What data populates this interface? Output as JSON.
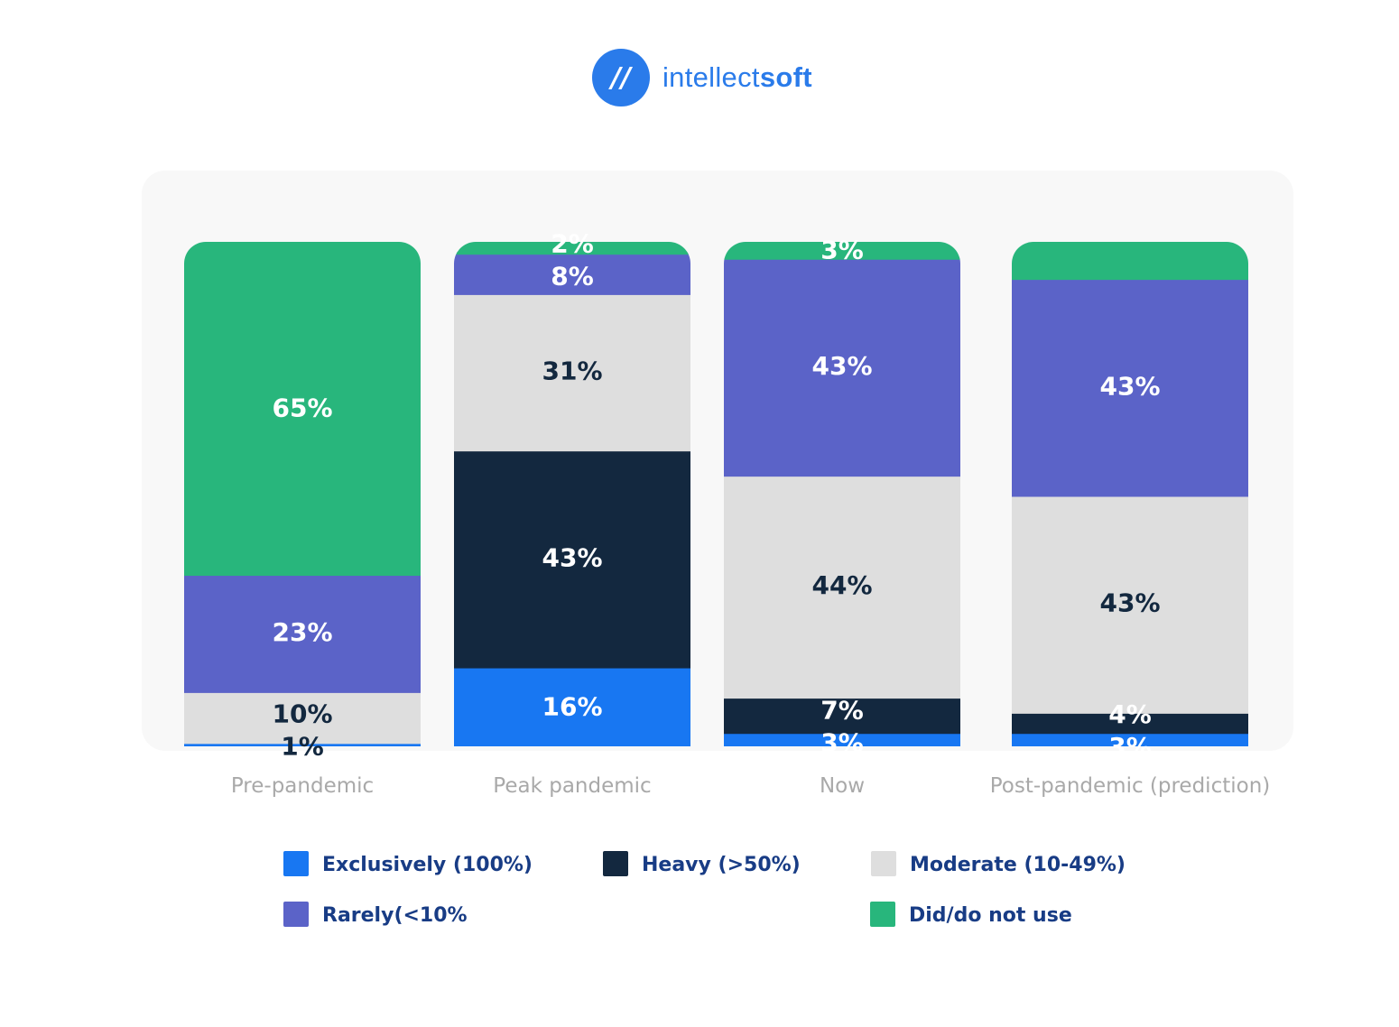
{
  "logo": {
    "text_light": "intellect",
    "text_bold": "soft",
    "mark": "//"
  },
  "colors": {
    "exclusively": "#1877f2",
    "heavy": "#13283f",
    "moderate": "#dedede",
    "rarely": "#5b63c8",
    "not_use": "#28b67c",
    "panel": "#f8f8f8",
    "legend_text": "#183c85",
    "axis_text": "#a9a9a9"
  },
  "chart_data": {
    "type": "bar",
    "stacked": true,
    "categories": [
      "Pre-pandemic",
      "Peak pandemic",
      "Now",
      "Post-pandemic (prediction)"
    ],
    "series": [
      {
        "name": "Exclusively (100%)",
        "color": "#1877f2",
        "values": [
          1,
          16,
          3,
          3
        ],
        "labels": [
          "1%",
          "16%",
          "3%",
          "3%"
        ]
      },
      {
        "name": "Heavy (>50%)",
        "color": "#13283f",
        "values": [
          0,
          43,
          7,
          4
        ],
        "labels": [
          "",
          "43%",
          "7%",
          "4%"
        ]
      },
      {
        "name": "Moderate (10-49%)",
        "color": "#dedede",
        "values": [
          10,
          31,
          44,
          43
        ],
        "labels": [
          "10%",
          "31%",
          "44%",
          "43%"
        ]
      },
      {
        "name": "Rarely(<10%",
        "color": "#5b63c8",
        "values": [
          23,
          8,
          43,
          43
        ],
        "labels": [
          "23%",
          "8%",
          "43%",
          "43%"
        ]
      },
      {
        "name": "Did/do not use",
        "color": "#28b67c",
        "values": [
          65,
          2,
          3,
          7
        ],
        "labels": [
          "65%",
          "2%",
          "3%",
          ""
        ]
      }
    ],
    "ylim": [
      0,
      100
    ],
    "grid": false,
    "legend_position": "bottom"
  }
}
